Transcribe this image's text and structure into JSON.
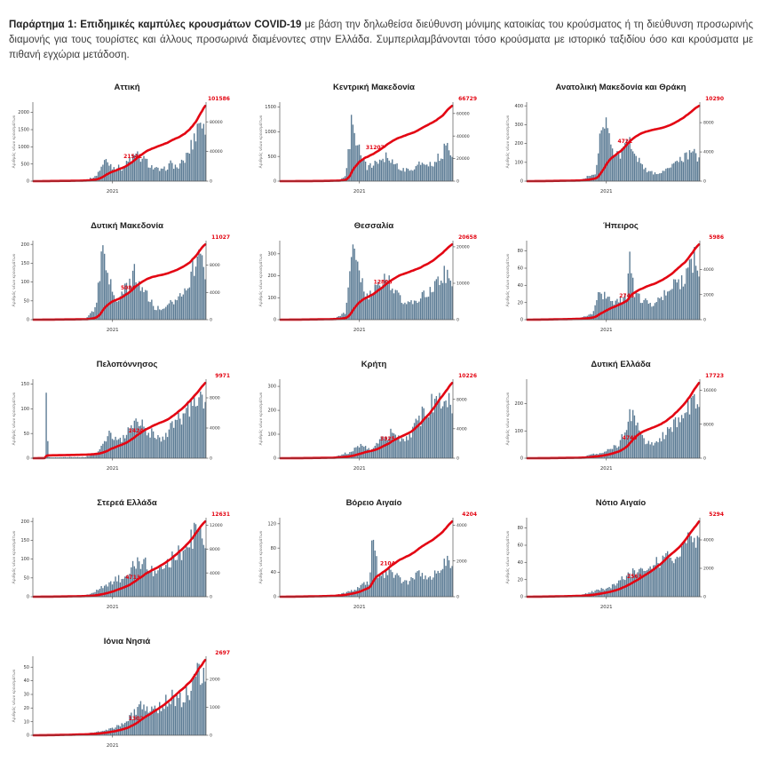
{
  "caption": {
    "lead_bold": "Παράρτημα 1:",
    "title_bold": " Επιδημικές καμπύλες κρουσμάτων COVID-19",
    "rest": " με βάση την δηλωθείσα διεύθυνση μόνιμης κατοικίας του κρούσματος ή τη διεύθυνση προσωρινής διαμονής για τους τουρίστες και άλλους προσωρινά διαμένοντες στην Ελλάδα. Συμπεριλαμβάνονται τόσο κρούσματα με ιστορικό ταξιδίου όσο και κρούσματα με πιθανή εγχώρια μετάδοση."
  },
  "chart_config": {
    "bar_color": "#5b7b94",
    "line_color": "#e30613",
    "axis_color": "#555555",
    "tick_text_color": "#333333",
    "ylabel_left": "Αριθμός νέων κρουσμάτων",
    "xtick_label": "2021",
    "xtick_frac": 0.46,
    "n_bars": 110
  },
  "chart_data": [
    {
      "type": "bar",
      "title": "Αττική",
      "total": 101586,
      "mid_annotation": {
        "value": 21542,
        "frac": 0.58
      },
      "left_max": 2300,
      "yticks_left": [
        0,
        500,
        1000,
        1500,
        2000
      ],
      "yticks_right": [
        0,
        40000,
        80000
      ],
      "daily_profile": [
        [
          0,
          2
        ],
        [
          0.1,
          12
        ],
        [
          0.2,
          8
        ],
        [
          0.3,
          35
        ],
        [
          0.36,
          150
        ],
        [
          0.42,
          700
        ],
        [
          0.46,
          480
        ],
        [
          0.52,
          430
        ],
        [
          0.56,
          700
        ],
        [
          0.6,
          850
        ],
        [
          0.65,
          680
        ],
        [
          0.7,
          420
        ],
        [
          0.75,
          340
        ],
        [
          0.8,
          580
        ],
        [
          0.84,
          440
        ],
        [
          0.88,
          700
        ],
        [
          0.93,
          1300
        ],
        [
          0.97,
          2150
        ],
        [
          1,
          1500
        ]
      ]
    },
    {
      "type": "bar",
      "title": "Κεντρική Μακεδονία",
      "total": 66729,
      "mid_annotation": {
        "value": 31207,
        "frac": 0.55
      },
      "left_max": 1600,
      "yticks_left": [
        0,
        500,
        1000,
        1500
      ],
      "yticks_right": [
        0,
        20000,
        40000,
        60000
      ],
      "daily_profile": [
        [
          0,
          1
        ],
        [
          0.25,
          6
        ],
        [
          0.34,
          25
        ],
        [
          0.38,
          120
        ],
        [
          0.42,
          1500
        ],
        [
          0.45,
          850
        ],
        [
          0.5,
          320
        ],
        [
          0.56,
          430
        ],
        [
          0.62,
          600
        ],
        [
          0.66,
          430
        ],
        [
          0.72,
          240
        ],
        [
          0.78,
          300
        ],
        [
          0.83,
          430
        ],
        [
          0.88,
          400
        ],
        [
          0.93,
          560
        ],
        [
          0.97,
          800
        ],
        [
          1,
          640
        ]
      ]
    },
    {
      "type": "bar",
      "title": "Ανατολική Μακεδονία και Θράκη",
      "total": 10290,
      "mid_annotation": {
        "value": 4721,
        "frac": 0.57
      },
      "left_max": 420,
      "yticks_left": [
        0,
        100,
        200,
        300,
        400
      ],
      "yticks_right": [
        0,
        4000,
        8000
      ],
      "daily_profile": [
        [
          0,
          1
        ],
        [
          0.3,
          4
        ],
        [
          0.4,
          50
        ],
        [
          0.44,
          390
        ],
        [
          0.47,
          290
        ],
        [
          0.51,
          140
        ],
        [
          0.55,
          180
        ],
        [
          0.6,
          245
        ],
        [
          0.64,
          150
        ],
        [
          0.7,
          55
        ],
        [
          0.76,
          45
        ],
        [
          0.82,
          80
        ],
        [
          0.88,
          115
        ],
        [
          0.93,
          150
        ],
        [
          0.97,
          175
        ],
        [
          1,
          135
        ]
      ]
    },
    {
      "type": "bar",
      "title": "Δυτική Μακεδονία",
      "total": 11027,
      "mid_annotation": {
        "value": 5084,
        "frac": 0.55
      },
      "left_max": 210,
      "yticks_left": [
        0,
        50,
        100,
        150,
        200
      ],
      "yticks_right": [
        0,
        4000,
        8000
      ],
      "daily_profile": [
        [
          0,
          0.5
        ],
        [
          0.3,
          2
        ],
        [
          0.36,
          35
        ],
        [
          0.4,
          195
        ],
        [
          0.44,
          115
        ],
        [
          0.48,
          55
        ],
        [
          0.54,
          95
        ],
        [
          0.59,
          140
        ],
        [
          0.64,
          95
        ],
        [
          0.7,
          38
        ],
        [
          0.76,
          28
        ],
        [
          0.82,
          60
        ],
        [
          0.88,
          95
        ],
        [
          0.93,
          150
        ],
        [
          0.97,
          200
        ],
        [
          1,
          150
        ]
      ]
    },
    {
      "type": "bar",
      "title": "Θεσσαλία",
      "total": 20658,
      "mid_annotation": {
        "value": 12808,
        "frac": 0.6
      },
      "left_max": 360,
      "yticks_left": [
        0,
        100,
        200,
        300
      ],
      "yticks_right": [
        0,
        10000,
        20000
      ],
      "daily_profile": [
        [
          0,
          1
        ],
        [
          0.3,
          4
        ],
        [
          0.38,
          35
        ],
        [
          0.42,
          345
        ],
        [
          0.46,
          215
        ],
        [
          0.51,
          115
        ],
        [
          0.56,
          160
        ],
        [
          0.62,
          215
        ],
        [
          0.66,
          155
        ],
        [
          0.72,
          80
        ],
        [
          0.78,
          90
        ],
        [
          0.84,
          130
        ],
        [
          0.9,
          170
        ],
        [
          0.95,
          230
        ],
        [
          0.98,
          265
        ],
        [
          1,
          205
        ]
      ]
    },
    {
      "type": "bar",
      "title": "Ήπειρος",
      "total": 5986,
      "mid_annotation": {
        "value": 2746,
        "frac": 0.58
      },
      "left_max": 92,
      "yticks_left": [
        0,
        20,
        40,
        60,
        80
      ],
      "yticks_right": [
        0,
        2000,
        4000
      ],
      "daily_profile": [
        [
          0,
          0.3
        ],
        [
          0.3,
          1.5
        ],
        [
          0.38,
          9
        ],
        [
          0.42,
          42
        ],
        [
          0.46,
          28
        ],
        [
          0.52,
          24
        ],
        [
          0.58,
          30
        ],
        [
          0.6,
          90
        ],
        [
          0.62,
          34
        ],
        [
          0.68,
          24
        ],
        [
          0.74,
          20
        ],
        [
          0.8,
          34
        ],
        [
          0.86,
          45
        ],
        [
          0.92,
          58
        ],
        [
          0.97,
          80
        ],
        [
          1,
          62
        ]
      ]
    },
    {
      "type": "bar",
      "title": "Πελοπόννησος",
      "total": 9971,
      "mid_annotation": {
        "value": 2424,
        "frac": 0.6
      },
      "left_max": 160,
      "yticks_left": [
        0,
        50,
        100,
        150
      ],
      "yticks_right": [
        0,
        4000,
        8000
      ],
      "daily_profile": [
        [
          0,
          0.5
        ],
        [
          0.065,
          2
        ],
        [
          0.075,
          150
        ],
        [
          0.085,
          2
        ],
        [
          0.3,
          2.5
        ],
        [
          0.38,
          14
        ],
        [
          0.44,
          58
        ],
        [
          0.5,
          38
        ],
        [
          0.56,
          66
        ],
        [
          0.62,
          88
        ],
        [
          0.68,
          58
        ],
        [
          0.74,
          44
        ],
        [
          0.8,
          68
        ],
        [
          0.86,
          92
        ],
        [
          0.92,
          118
        ],
        [
          0.97,
          148
        ],
        [
          1,
          115
        ]
      ]
    },
    {
      "type": "bar",
      "title": "Κρήτη",
      "total": 10226,
      "mid_annotation": {
        "value": 3925,
        "frac": 0.62
      },
      "left_max": 330,
      "yticks_left": [
        0,
        100,
        200,
        300
      ],
      "yticks_right": [
        0,
        4000,
        8000
      ],
      "daily_profile": [
        [
          0,
          0.5
        ],
        [
          0.3,
          3
        ],
        [
          0.4,
          28
        ],
        [
          0.46,
          58
        ],
        [
          0.52,
          46
        ],
        [
          0.58,
          88
        ],
        [
          0.64,
          118
        ],
        [
          0.7,
          88
        ],
        [
          0.76,
          120
        ],
        [
          0.82,
          200
        ],
        [
          0.88,
          258
        ],
        [
          0.93,
          300
        ],
        [
          0.97,
          278
        ],
        [
          1,
          225
        ]
      ]
    },
    {
      "type": "bar",
      "title": "Δυτική Ελλάδα",
      "total": 17723,
      "mid_annotation": {
        "value": 4745,
        "frac": 0.6
      },
      "left_max": 290,
      "yticks_left": [
        0,
        100,
        200
      ],
      "yticks_right": [
        0,
        8000,
        16000
      ],
      "daily_profile": [
        [
          0,
          0.5
        ],
        [
          0.3,
          2.5
        ],
        [
          0.4,
          18
        ],
        [
          0.46,
          28
        ],
        [
          0.54,
          60
        ],
        [
          0.6,
          185
        ],
        [
          0.65,
          115
        ],
        [
          0.7,
          58
        ],
        [
          0.76,
          70
        ],
        [
          0.82,
          112
        ],
        [
          0.88,
          152
        ],
        [
          0.93,
          215
        ],
        [
          0.97,
          265
        ],
        [
          1,
          205
        ]
      ]
    },
    {
      "type": "bar",
      "title": "Στερεά Ελλάδα",
      "total": 12631,
      "mid_annotation": {
        "value": 4713,
        "frac": 0.58
      },
      "left_max": 210,
      "yticks_left": [
        0,
        50,
        100,
        150,
        200
      ],
      "yticks_right": [
        0,
        4000,
        8000,
        12000
      ],
      "daily_profile": [
        [
          0,
          0.5
        ],
        [
          0.3,
          3
        ],
        [
          0.4,
          28
        ],
        [
          0.46,
          48
        ],
        [
          0.52,
          58
        ],
        [
          0.58,
          92
        ],
        [
          0.64,
          112
        ],
        [
          0.7,
          70
        ],
        [
          0.76,
          82
        ],
        [
          0.82,
          122
        ],
        [
          0.88,
          142
        ],
        [
          0.93,
          182
        ],
        [
          0.97,
          205
        ],
        [
          1,
          158
        ]
      ]
    },
    {
      "type": "bar",
      "title": "Βόρειο Αιγαίο",
      "total": 4204,
      "mid_annotation": {
        "value": 2104,
        "frac": 0.62
      },
      "left_max": 130,
      "yticks_left": [
        0,
        40,
        80,
        120
      ],
      "yticks_right": [
        0,
        2000,
        4000
      ],
      "daily_profile": [
        [
          0,
          0.3
        ],
        [
          0.3,
          1.5
        ],
        [
          0.4,
          9
        ],
        [
          0.46,
          18
        ],
        [
          0.52,
          28
        ],
        [
          0.54,
          128
        ],
        [
          0.57,
          32
        ],
        [
          0.63,
          52
        ],
        [
          0.69,
          33
        ],
        [
          0.75,
          28
        ],
        [
          0.81,
          44
        ],
        [
          0.87,
          38
        ],
        [
          0.93,
          54
        ],
        [
          0.97,
          68
        ],
        [
          1,
          52
        ]
      ]
    },
    {
      "type": "bar",
      "title": "Νότιο Αιγαίο",
      "total": 5294,
      "mid_annotation": {
        "value": 2563,
        "frac": 0.62
      },
      "left_max": 92,
      "yticks_left": [
        0,
        20,
        40,
        60,
        80
      ],
      "yticks_right": [
        0,
        2000,
        4000
      ],
      "daily_profile": [
        [
          0,
          0.3
        ],
        [
          0.3,
          1.5
        ],
        [
          0.42,
          9
        ],
        [
          0.5,
          14
        ],
        [
          0.56,
          24
        ],
        [
          0.62,
          34
        ],
        [
          0.68,
          30
        ],
        [
          0.74,
          44
        ],
        [
          0.8,
          54
        ],
        [
          0.86,
          48
        ],
        [
          0.92,
          64
        ],
        [
          0.97,
          85
        ],
        [
          1,
          66
        ]
      ]
    },
    {
      "type": "bar",
      "title": "Ιόνια Νησιά",
      "total": 2697,
      "mid_annotation": {
        "value": 1302,
        "frac": 0.6
      },
      "left_max": 58,
      "yticks_left": [
        0,
        10,
        20,
        30,
        40,
        50
      ],
      "yticks_right": [
        0,
        1000,
        2000
      ],
      "daily_profile": [
        [
          0,
          0.2
        ],
        [
          0.3,
          1
        ],
        [
          0.42,
          4
        ],
        [
          0.5,
          8
        ],
        [
          0.56,
          14
        ],
        [
          0.62,
          24
        ],
        [
          0.68,
          19
        ],
        [
          0.74,
          24
        ],
        [
          0.8,
          33
        ],
        [
          0.86,
          29
        ],
        [
          0.92,
          39
        ],
        [
          0.97,
          54
        ],
        [
          1,
          44
        ]
      ]
    }
  ]
}
